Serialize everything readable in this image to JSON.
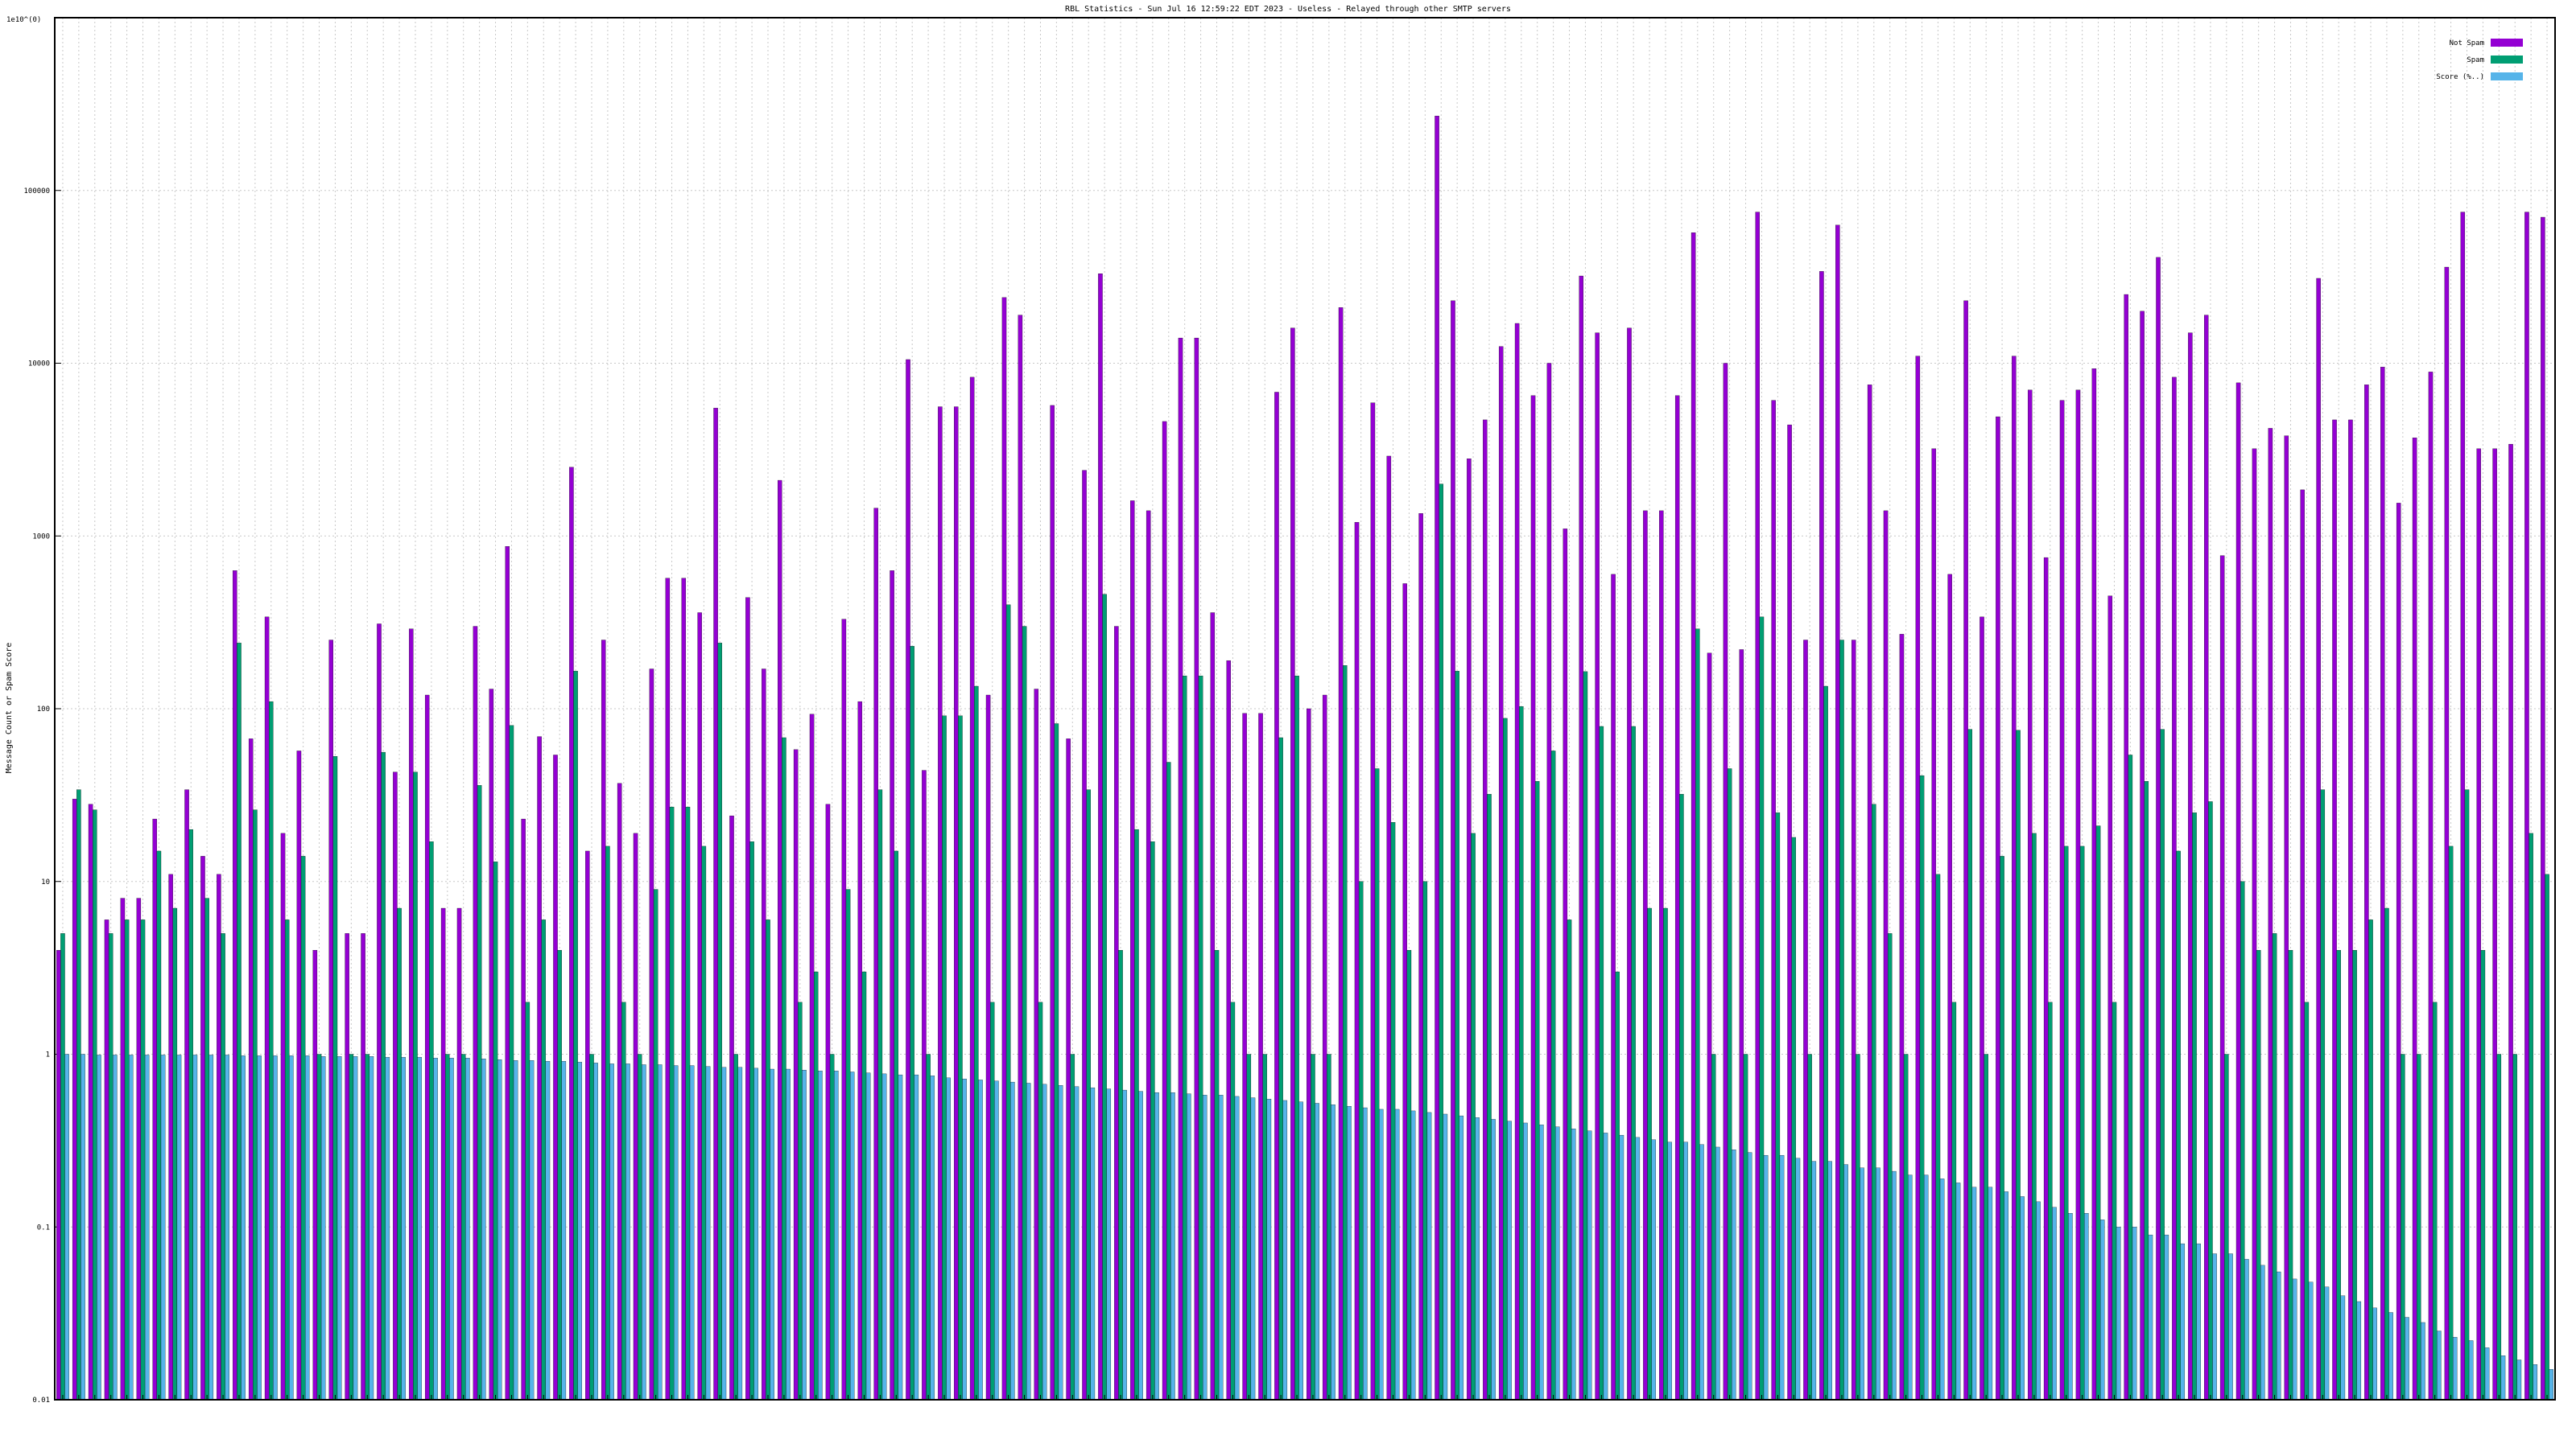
{
  "chart_data": {
    "type": "bar",
    "title": "RBL Statistics - Sun Jul 16 12:59:22 EDT 2023 - Useless - Relayed through other SMTP servers",
    "ylabel": "Message Count or Spam Score",
    "ylabel_top": "1e10^(0)",
    "yscale": "log",
    "ylim": [
      0.01,
      1000000
    ],
    "y_ticks": [
      "0.01",
      "0.1",
      "1",
      "10",
      "100",
      "1000",
      "10000",
      "100000"
    ],
    "grid": true,
    "legend_position": "top-right",
    "colors": {
      "not_spam": "#9400d3",
      "spam": "#009e73",
      "score": "#56b4e9"
    },
    "series": [
      {
        "name": "Not Spam",
        "color": "#9400d3",
        "values": [
          4,
          30,
          28,
          6,
          8,
          8,
          23,
          11,
          34,
          14,
          11,
          630,
          67,
          340,
          19,
          57,
          4,
          250,
          5,
          5,
          310,
          43,
          290,
          120,
          7,
          7,
          300,
          130,
          870,
          23,
          69,
          54,
          2500,
          15,
          250,
          37,
          19,
          170,
          570,
          570,
          360,
          5500,
          24,
          440,
          170,
          2100,
          58,
          93,
          28,
          330,
          110,
          1450,
          630,
          10500,
          44,
          5600,
          5600,
          8300,
          120,
          24000,
          19000,
          130,
          5700,
          67,
          2400,
          33000,
          300,
          1600,
          1400,
          4600,
          14000,
          14000,
          360,
          190,
          94,
          94,
          6800,
          16000,
          100,
          120,
          21000,
          1200,
          5900,
          2900,
          530,
          1350,
          270000,
          23000,
          2800,
          4700,
          12500,
          17000,
          6500,
          10000,
          1100,
          32000,
          15000,
          600,
          16000,
          1400,
          1400,
          6500,
          57000,
          210,
          10000,
          220,
          75000,
          6100,
          4400,
          250,
          34000,
          63000,
          250,
          7500,
          1400,
          270,
          11000,
          3200,
          600,
          23000,
          340,
          4900,
          11000,
          7000,
          750,
          6100,
          7000,
          9300,
          450,
          25000,
          20000,
          41000,
          8300,
          15000,
          19000,
          770,
          7700,
          3200,
          4200,
          3800,
          1850,
          31000,
          4700,
          4700,
          7500,
          9500,
          1550,
          3700,
          8900,
          36000,
          75000,
          3200,
          3200,
          3400,
          75000,
          70000
        ]
      },
      {
        "name": "Spam",
        "color": "#009e73",
        "values": [
          5,
          34,
          26,
          5,
          6,
          6,
          15,
          7,
          20,
          8,
          5,
          240,
          26,
          110,
          6,
          14,
          1,
          53,
          1,
          1,
          56,
          7,
          43,
          17,
          1,
          1,
          36,
          13,
          80,
          2,
          6,
          4,
          165,
          1,
          16,
          2,
          1,
          9,
          27,
          27,
          16,
          240,
          1,
          17,
          6,
          68,
          2,
          3,
          1,
          9,
          3,
          34,
          15,
          230,
          1,
          91,
          91,
          135,
          2,
          400,
          300,
          2,
          82,
          1,
          34,
          460,
          4,
          20,
          17,
          49,
          155,
          155,
          4,
          2,
          1,
          1,
          68,
          155,
          1,
          1,
          178,
          10,
          45,
          22,
          4,
          10,
          2000,
          165,
          19,
          32,
          88,
          103,
          38,
          57,
          6,
          164,
          79,
          3,
          79,
          7,
          7,
          32,
          290,
          1,
          45,
          1,
          340,
          25,
          18,
          1,
          135,
          250,
          1,
          28,
          5,
          1,
          41,
          11,
          2,
          76,
          1,
          14,
          75,
          19,
          2,
          16,
          16,
          21,
          2,
          54,
          38,
          76,
          15,
          25,
          29,
          1,
          10,
          4,
          5,
          4,
          2,
          34,
          4,
          4,
          6,
          7,
          1,
          1,
          2,
          16,
          34,
          4,
          1,
          1,
          19,
          11
        ]
      },
      {
        "name": "Score (%..)",
        "color": "#56b4e9",
        "values": [
          1,
          1,
          0.99,
          0.99,
          0.99,
          0.99,
          0.99,
          0.99,
          0.99,
          0.99,
          0.99,
          0.98,
          0.98,
          0.98,
          0.98,
          0.98,
          0.97,
          0.97,
          0.97,
          0.97,
          0.96,
          0.96,
          0.96,
          0.95,
          0.95,
          0.95,
          0.94,
          0.93,
          0.92,
          0.92,
          0.91,
          0.91,
          0.9,
          0.89,
          0.88,
          0.88,
          0.87,
          0.87,
          0.86,
          0.86,
          0.85,
          0.84,
          0.84,
          0.83,
          0.82,
          0.82,
          0.81,
          0.8,
          0.8,
          0.79,
          0.78,
          0.77,
          0.76,
          0.76,
          0.75,
          0.73,
          0.72,
          0.71,
          0.7,
          0.69,
          0.68,
          0.67,
          0.66,
          0.65,
          0.64,
          0.63,
          0.62,
          0.61,
          0.6,
          0.6,
          0.59,
          0.58,
          0.58,
          0.57,
          0.56,
          0.55,
          0.54,
          0.53,
          0.52,
          0.51,
          0.5,
          0.49,
          0.48,
          0.48,
          0.47,
          0.46,
          0.45,
          0.44,
          0.43,
          0.42,
          0.41,
          0.4,
          0.39,
          0.38,
          0.37,
          0.36,
          0.35,
          0.34,
          0.33,
          0.32,
          0.31,
          0.31,
          0.3,
          0.29,
          0.28,
          0.27,
          0.26,
          0.26,
          0.25,
          0.24,
          0.24,
          0.23,
          0.22,
          0.22,
          0.21,
          0.2,
          0.2,
          0.19,
          0.18,
          0.17,
          0.17,
          0.16,
          0.15,
          0.14,
          0.13,
          0.12,
          0.12,
          0.11,
          0.1,
          0.1,
          0.09,
          0.09,
          0.08,
          0.08,
          0.07,
          0.07,
          0.065,
          0.06,
          0.055,
          0.05,
          0.048,
          0.045,
          0.04,
          0.037,
          0.034,
          0.032,
          0.03,
          0.028,
          0.025,
          0.023,
          0.022,
          0.02,
          0.018,
          0.017,
          0.016,
          0.015
        ]
      }
    ]
  }
}
